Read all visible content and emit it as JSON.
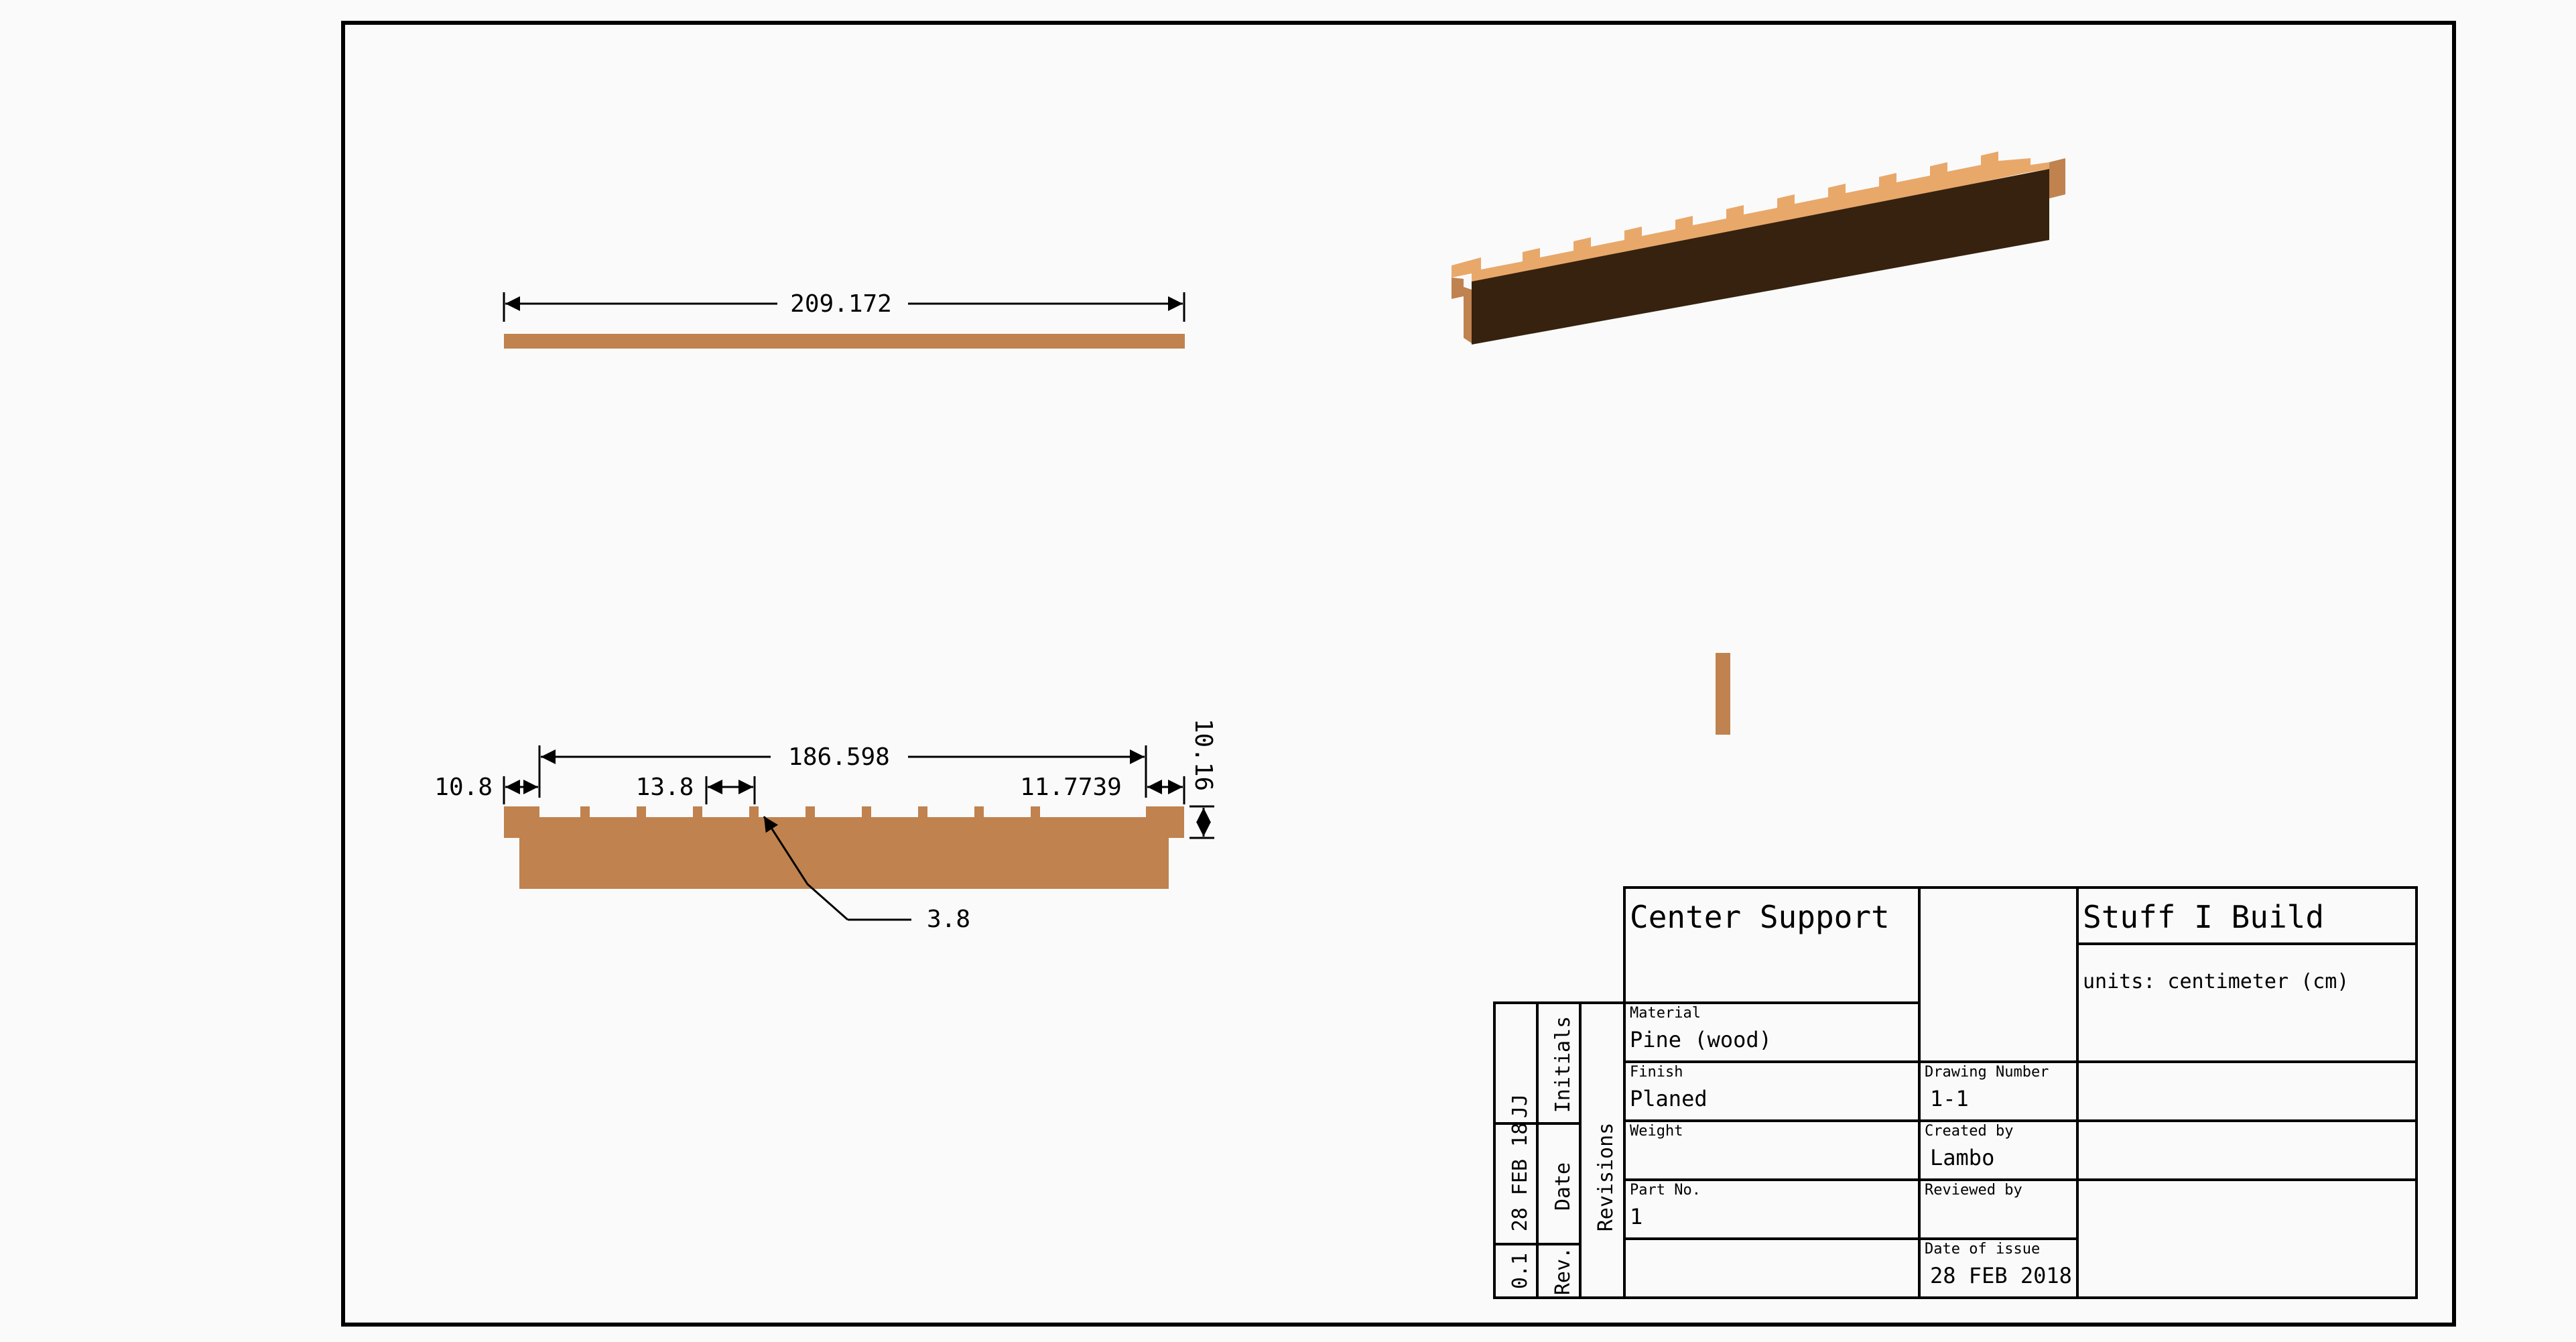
{
  "drawing": {
    "colors": {
      "background": "#fafafa",
      "line": "#000000",
      "wood_face": "#c0824e",
      "wood_top": "#e8a86a",
      "wood_dark": "#36220f"
    }
  },
  "dimensions": {
    "top_length": "209.172",
    "inner_span": "186.598",
    "left_margin": "10.8",
    "slot_spacing": "13.8",
    "right_margin": "11.7739",
    "height": "10.16",
    "slot_width": "3.8"
  },
  "title_block": {
    "part_title": "Center Support",
    "company": "Stuff I Build",
    "units": "units: centimeter (cm)",
    "material_label": "Material",
    "material_value": "Pine (wood)",
    "finish_label": "Finish",
    "finish_value": "Planed",
    "drawing_number_label": "Drawing Number",
    "drawing_number_value": "1-1",
    "weight_label": "Weight",
    "weight_value": "",
    "created_by_label": "Created by",
    "created_by_value": "Lambo",
    "part_no_label": "Part No.",
    "part_no_value": "1",
    "reviewed_by_label": "Reviewed by",
    "reviewed_by_value": "",
    "date_of_issue_label": "Date of issue",
    "date_of_issue_value": "28 FEB 2018"
  },
  "revisions": {
    "header_rev": "Rev.",
    "header_date": "Date",
    "header_initials": "Initials",
    "header_revisions": "Revisions",
    "rev": "0.1",
    "date": "28 FEB 18",
    "initials": "JJ"
  }
}
